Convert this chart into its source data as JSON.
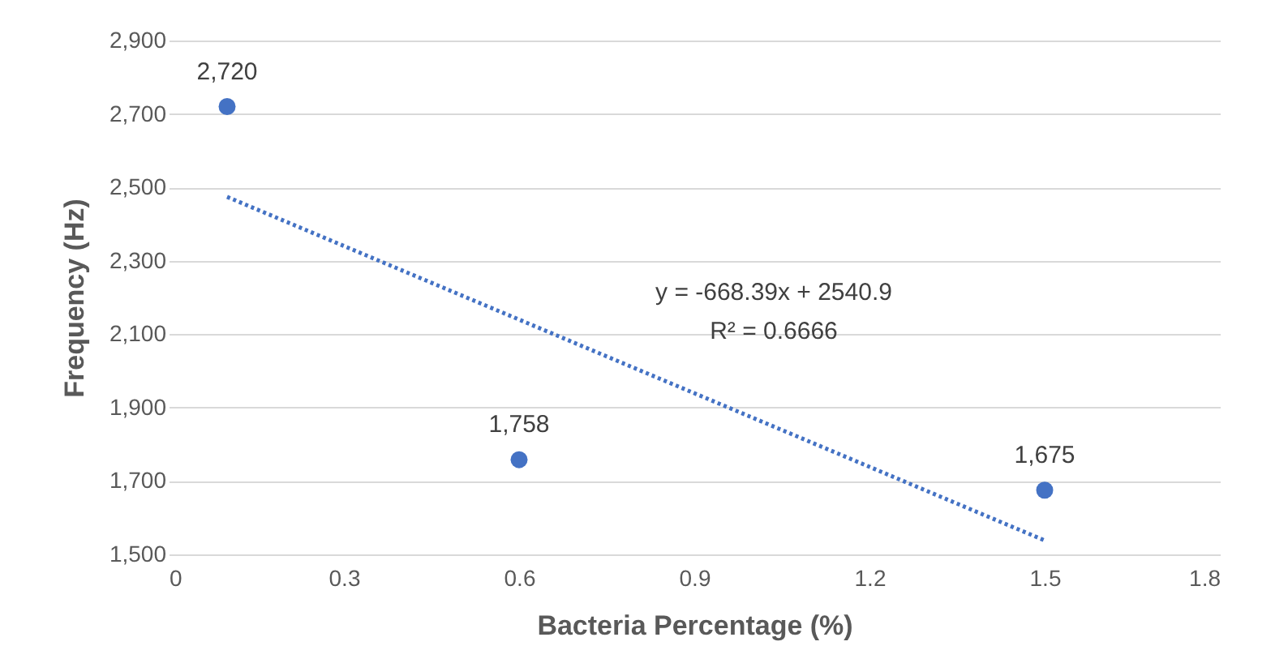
{
  "chart_data": {
    "type": "scatter",
    "xlabel": "Bacteria Percentage (%)",
    "ylabel": "Frequency (Hz)",
    "xlim": [
      0,
      1.8
    ],
    "xticks": [
      0,
      0.3,
      0.6,
      0.9,
      1.2,
      1.5,
      1.8
    ],
    "ylim": [
      1500,
      2900
    ],
    "yticks": [
      {
        "value": 1500,
        "label": "1,500"
      },
      {
        "value": 1700,
        "label": "1,700"
      },
      {
        "value": 1900,
        "label": "1,900"
      },
      {
        "value": 2100,
        "label": "2,100"
      },
      {
        "value": 2300,
        "label": "2,300"
      },
      {
        "value": 2500,
        "label": "2,500"
      },
      {
        "value": 2700,
        "label": "2,700"
      },
      {
        "value": 2900,
        "label": "2,900"
      }
    ],
    "grid": "y",
    "marker": "circle",
    "series": [
      {
        "color": "#4472c4",
        "x": [
          0.1,
          0.6,
          1.5
        ],
        "values": [
          2720,
          1758,
          1675
        ],
        "value_labels": [
          "2,720",
          "1,758",
          "1,675"
        ]
      },
      {
        "type": "line",
        "color": "#4472c4",
        "x": [
          0.1,
          1.5
        ],
        "values": [
          2474,
          1538
        ],
        "line_style": "dotted",
        "marker": "none"
      }
    ],
    "annotations": [
      "y = -668.39x + 2540.9",
      "R² = 0.6666"
    ]
  }
}
